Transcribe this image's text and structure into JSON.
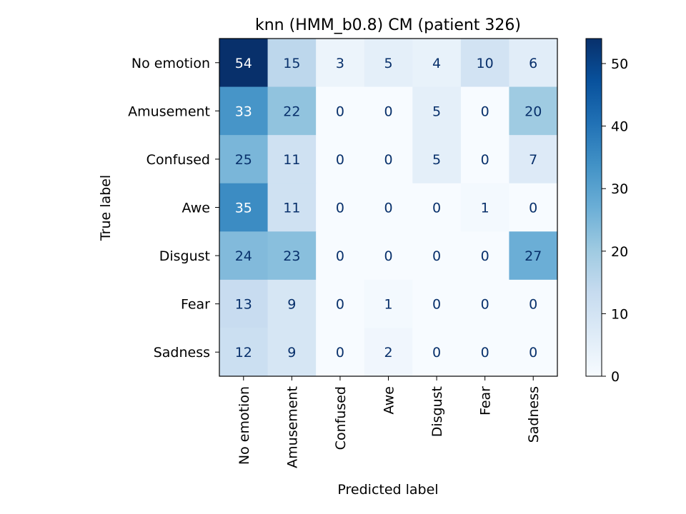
{
  "chart_data": {
    "type": "heatmap",
    "title": "knn (HMM_b0.8) CM (patient 326)",
    "xlabel": "Predicted label",
    "ylabel": "True label",
    "x_categories": [
      "No emotion",
      "Amusement",
      "Confused",
      "Awe",
      "Disgust",
      "Fear",
      "Sadness"
    ],
    "y_categories": [
      "No emotion",
      "Amusement",
      "Confused",
      "Awe",
      "Disgust",
      "Fear",
      "Sadness"
    ],
    "values": [
      [
        54,
        15,
        3,
        5,
        4,
        10,
        6
      ],
      [
        33,
        22,
        0,
        0,
        5,
        0,
        20
      ],
      [
        25,
        11,
        0,
        0,
        5,
        0,
        7
      ],
      [
        35,
        11,
        0,
        0,
        0,
        1,
        0
      ],
      [
        24,
        23,
        0,
        0,
        0,
        0,
        27
      ],
      [
        13,
        9,
        0,
        1,
        0,
        0,
        0
      ],
      [
        12,
        9,
        0,
        2,
        0,
        0,
        0
      ]
    ],
    "colorbar": {
      "range": [
        0,
        54
      ],
      "ticks": [
        0,
        10,
        20,
        30,
        40,
        50
      ],
      "colormap": "Blues",
      "low_color": "#f7fbff",
      "high_color": "#08306b"
    },
    "text_color_light": "#ffffff",
    "text_color_dark": "#08306b"
  }
}
